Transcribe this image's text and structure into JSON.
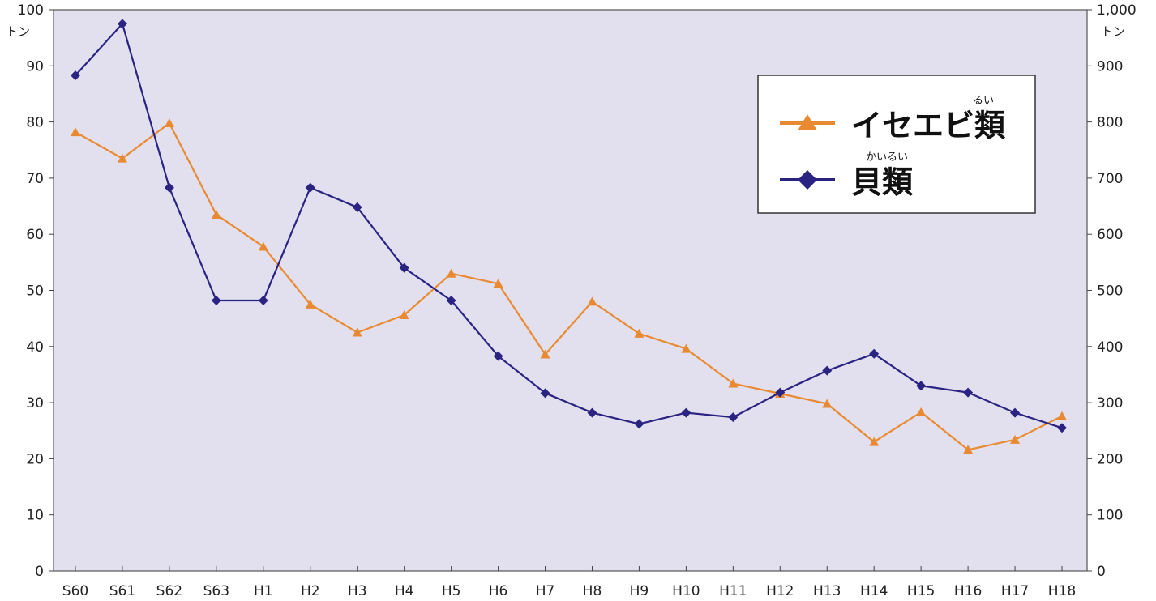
{
  "chart_data": {
    "type": "line",
    "categories": [
      "S60",
      "S61",
      "S62",
      "S63",
      "H1",
      "H2",
      "H3",
      "H4",
      "H5",
      "H6",
      "H7",
      "H8",
      "H9",
      "H10",
      "H11",
      "H12",
      "H13",
      "H14",
      "H15",
      "H16",
      "H17",
      "H18"
    ],
    "left_axis": {
      "unit": "トン",
      "ylim": [
        0,
        100
      ],
      "ticks": [
        "0",
        "10",
        "20",
        "30",
        "40",
        "50",
        "60",
        "70",
        "80",
        "90",
        "100"
      ]
    },
    "right_axis": {
      "unit": "トン",
      "ylim": [
        0,
        1000
      ],
      "ticks": [
        "0",
        "100",
        "200",
        "300",
        "400",
        "500",
        "600",
        "700",
        "800",
        "900",
        "1,000"
      ]
    },
    "series": [
      {
        "name": "イセエビ類",
        "ruby": "るい",
        "axis": "left",
        "color": "#E98A32",
        "marker": "triangle",
        "values": [
          78.2,
          73.5,
          79.8,
          63.5,
          57.8,
          47.5,
          42.5,
          45.6,
          53.0,
          51.2,
          38.6,
          48.0,
          42.3,
          39.6,
          33.4,
          31.6,
          29.8,
          23.0,
          28.3,
          21.6,
          23.4,
          27.6
        ]
      },
      {
        "name": "貝類",
        "ruby": "かいるい",
        "axis": "right",
        "color": "#2B2382",
        "marker": "diamond",
        "values": [
          883,
          975,
          683,
          482,
          482,
          683,
          648,
          540,
          482,
          383,
          317,
          282,
          262,
          282,
          274,
          318,
          357,
          387,
          330,
          318,
          282,
          255
        ]
      }
    ],
    "grid": false,
    "legend_position": "top-right",
    "plot_background": "#E2E0EE"
  }
}
